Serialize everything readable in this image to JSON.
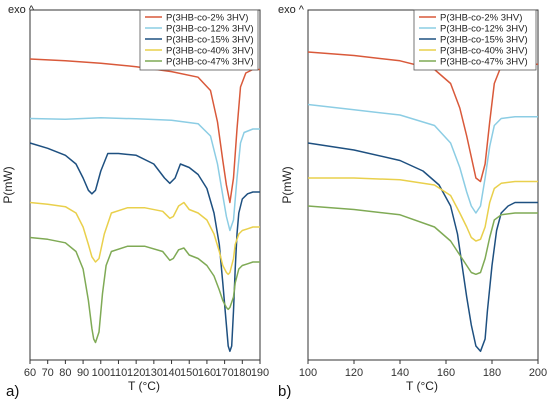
{
  "figure": {
    "panels": [
      {
        "label": "a)",
        "exo_label": "exo ^"
      },
      {
        "label": "b)",
        "exo_label": "exo ^"
      }
    ]
  },
  "chart_data": [
    {
      "type": "line",
      "panel": "a)",
      "xlabel": "T (°C)",
      "ylabel": "P(mW)",
      "annotation": "exo ^",
      "xlim": [
        60,
        190
      ],
      "x_ticks": [
        60,
        70,
        80,
        90,
        100,
        110,
        120,
        130,
        140,
        150,
        160,
        170,
        180,
        190
      ],
      "y_ticks": [],
      "legend_position": "top-right",
      "y_units": "relative heat flow, offset curves (0 = bottom, 100 = top of plot)",
      "series": [
        {
          "name": "P(3HB-co-2% 3HV)",
          "color": "#d9593a",
          "points": [
            [
              60,
              86
            ],
            [
              80,
              85.5
            ],
            [
              100,
              84.8
            ],
            [
              120,
              83.8
            ],
            [
              140,
              82.4
            ],
            [
              155,
              80.8
            ],
            [
              162,
              77
            ],
            [
              166,
              68
            ],
            [
              169,
              57
            ],
            [
              171,
              50
            ],
            [
              173,
              45
            ],
            [
              175,
              52
            ],
            [
              177,
              66
            ],
            [
              179,
              78
            ],
            [
              182,
              82
            ],
            [
              186,
              83
            ],
            [
              190,
              83
            ]
          ]
        },
        {
          "name": "P(3HB-co-12% 3HV)",
          "color": "#8ccde4",
          "points": [
            [
              60,
              69
            ],
            [
              80,
              68.8
            ],
            [
              100,
              69.2
            ],
            [
              120,
              68.9
            ],
            [
              140,
              68.5
            ],
            [
              155,
              67.5
            ],
            [
              162,
              64
            ],
            [
              166,
              56
            ],
            [
              169,
              47
            ],
            [
              171,
              41
            ],
            [
              173,
              37
            ],
            [
              175,
              40
            ],
            [
              177,
              52
            ],
            [
              179,
              62
            ],
            [
              181,
              65
            ],
            [
              186,
              66
            ],
            [
              190,
              66
            ]
          ]
        },
        {
          "name": "P(3HB-co-15% 3HV)",
          "color": "#1e5080",
          "points": [
            [
              60,
              62
            ],
            [
              70,
              60.5
            ],
            [
              80,
              58.5
            ],
            [
              86,
              56
            ],
            [
              90,
              52
            ],
            [
              93,
              48.5
            ],
            [
              95,
              47.5
            ],
            [
              97,
              48.5
            ],
            [
              100,
              54
            ],
            [
              104,
              59
            ],
            [
              110,
              59
            ],
            [
              120,
              58.5
            ],
            [
              130,
              56
            ],
            [
              136,
              52
            ],
            [
              139,
              50.5
            ],
            [
              142,
              52
            ],
            [
              145,
              56
            ],
            [
              150,
              55
            ],
            [
              155,
              53
            ],
            [
              160,
              49
            ],
            [
              164,
              42
            ],
            [
              167,
              33
            ],
            [
              169,
              22
            ],
            [
              171,
              10
            ],
            [
              172,
              4
            ],
            [
              173,
              2.5
            ],
            [
              174,
              4
            ],
            [
              175,
              14
            ],
            [
              176,
              26
            ],
            [
              177,
              36
            ],
            [
              178,
              42
            ],
            [
              180,
              46
            ],
            [
              183,
              47.5
            ],
            [
              186,
              48
            ],
            [
              190,
              48
            ]
          ]
        },
        {
          "name": "P(3HB-co-40% 3HV)",
          "color": "#e9d04c",
          "points": [
            [
              60,
              45
            ],
            [
              70,
              44.5
            ],
            [
              80,
              43.8
            ],
            [
              86,
              42
            ],
            [
              90,
              38
            ],
            [
              93,
              33
            ],
            [
              95,
              29.5
            ],
            [
              97,
              28
            ],
            [
              99,
              29
            ],
            [
              102,
              36
            ],
            [
              106,
              42
            ],
            [
              115,
              43.5
            ],
            [
              125,
              43.5
            ],
            [
              135,
              42.5
            ],
            [
              139,
              40.5
            ],
            [
              141,
              41
            ],
            [
              144,
              44
            ],
            [
              147,
              45
            ],
            [
              150,
              43
            ],
            [
              155,
              42
            ],
            [
              160,
              40
            ],
            [
              164,
              36
            ],
            [
              167,
              31
            ],
            [
              169,
              27
            ],
            [
              171,
              25
            ],
            [
              172,
              24.5
            ],
            [
              173,
              25
            ],
            [
              175,
              29
            ],
            [
              176,
              33
            ],
            [
              178,
              36
            ],
            [
              180,
              37
            ],
            [
              183,
              37.5
            ],
            [
              186,
              38
            ],
            [
              190,
              38
            ]
          ]
        },
        {
          "name": "P(3HB-co-47% 3HV)",
          "color": "#7faa55",
          "points": [
            [
              60,
              35
            ],
            [
              70,
              34.5
            ],
            [
              80,
              33.5
            ],
            [
              86,
              31
            ],
            [
              90,
              26
            ],
            [
              93,
              17
            ],
            [
              95,
              9
            ],
            [
              96,
              6
            ],
            [
              97,
              5
            ],
            [
              99,
              8
            ],
            [
              101,
              19
            ],
            [
              103,
              27
            ],
            [
              106,
              31
            ],
            [
              115,
              32.5
            ],
            [
              125,
              32.5
            ],
            [
              135,
              31
            ],
            [
              139,
              28.5
            ],
            [
              141,
              29
            ],
            [
              144,
              31.5
            ],
            [
              147,
              32
            ],
            [
              150,
              30
            ],
            [
              155,
              29
            ],
            [
              160,
              27
            ],
            [
              164,
              24
            ],
            [
              167,
              20
            ],
            [
              169,
              17
            ],
            [
              171,
              15
            ],
            [
              172,
              14.5
            ],
            [
              173,
              15
            ],
            [
              175,
              18
            ],
            [
              176,
              22
            ],
            [
              178,
              26
            ],
            [
              180,
              27
            ],
            [
              183,
              27.5
            ],
            [
              186,
              28
            ],
            [
              190,
              28
            ]
          ]
        }
      ]
    },
    {
      "type": "line",
      "panel": "b)",
      "xlabel": "T (°C)",
      "ylabel": "P(mW)",
      "annotation": "exo ^",
      "xlim": [
        100,
        200
      ],
      "x_ticks": [
        100,
        120,
        140,
        160,
        180,
        200
      ],
      "y_ticks": [],
      "legend_position": "top-right",
      "y_units": "relative heat flow, offset curves (0 = bottom, 100 = top of plot)",
      "series": [
        {
          "name": "P(3HB-co-2% 3HV)",
          "color": "#d9593a",
          "points": [
            [
              100,
              88
            ],
            [
              120,
              87
            ],
            [
              140,
              85.5
            ],
            [
              155,
              83
            ],
            [
              162,
              79
            ],
            [
              166,
              72
            ],
            [
              169,
              64
            ],
            [
              171,
              58
            ],
            [
              173,
              52
            ],
            [
              175,
              51
            ],
            [
              177,
              56
            ],
            [
              179,
              68
            ],
            [
              181,
              79
            ],
            [
              184,
              84
            ],
            [
              190,
              84.5
            ],
            [
              200,
              84.5
            ]
          ]
        },
        {
          "name": "P(3HB-co-12% 3HV)",
          "color": "#8ccde4",
          "points": [
            [
              100,
              73
            ],
            [
              120,
              71.5
            ],
            [
              140,
              70
            ],
            [
              155,
              67
            ],
            [
              162,
              62
            ],
            [
              166,
              55
            ],
            [
              169,
              48
            ],
            [
              171,
              44
            ],
            [
              173,
              42
            ],
            [
              175,
              44
            ],
            [
              177,
              52
            ],
            [
              179,
              61
            ],
            [
              181,
              67
            ],
            [
              184,
              69
            ],
            [
              190,
              69.5
            ],
            [
              200,
              69.5
            ]
          ]
        },
        {
          "name": "P(3HB-co-15% 3HV)",
          "color": "#1e5080",
          "points": [
            [
              100,
              62
            ],
            [
              120,
              60
            ],
            [
              140,
              57
            ],
            [
              150,
              54
            ],
            [
              157,
              50
            ],
            [
              162,
              44
            ],
            [
              165,
              36
            ],
            [
              167,
              27
            ],
            [
              169,
              18
            ],
            [
              171,
              10
            ],
            [
              173,
              4
            ],
            [
              175,
              2.5
            ],
            [
              177,
              6
            ],
            [
              178,
              14
            ],
            [
              180,
              27
            ],
            [
              182,
              37
            ],
            [
              184,
              42
            ],
            [
              187,
              44
            ],
            [
              190,
              45
            ],
            [
              200,
              45
            ]
          ]
        },
        {
          "name": "P(3HB-co-40% 3HV)",
          "color": "#e9d04c",
          "points": [
            [
              100,
              52
            ],
            [
              120,
              52
            ],
            [
              140,
              51.5
            ],
            [
              155,
              50
            ],
            [
              162,
              47
            ],
            [
              166,
              42
            ],
            [
              169,
              38
            ],
            [
              171,
              35
            ],
            [
              173,
              34
            ],
            [
              175,
              34.5
            ],
            [
              177,
              38
            ],
            [
              179,
              45
            ],
            [
              181,
              49
            ],
            [
              184,
              50.5
            ],
            [
              190,
              51
            ],
            [
              200,
              51
            ]
          ]
        },
        {
          "name": "P(3HB-co-47% 3HV)",
          "color": "#7faa55",
          "points": [
            [
              100,
              44
            ],
            [
              120,
              43
            ],
            [
              140,
              41.5
            ],
            [
              155,
              38
            ],
            [
              162,
              34
            ],
            [
              166,
              30
            ],
            [
              169,
              27
            ],
            [
              171,
              25
            ],
            [
              173,
              24.5
            ],
            [
              175,
              25
            ],
            [
              177,
              29
            ],
            [
              179,
              35
            ],
            [
              181,
              40
            ],
            [
              184,
              41.5
            ],
            [
              190,
              42
            ],
            [
              200,
              42
            ]
          ]
        }
      ]
    }
  ]
}
